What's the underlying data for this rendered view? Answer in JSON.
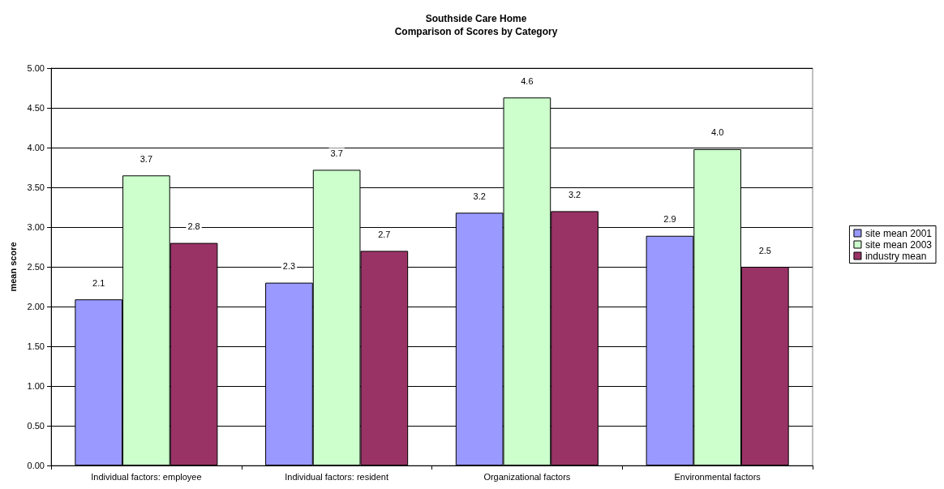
{
  "chart_data": {
    "type": "bar",
    "title": "Southside Care Home\nComparison of Scores by Category",
    "ylabel": "mean score",
    "categories": [
      "Individual factors: employee",
      "Individual factors: resident",
      "Organizational factors",
      "Environmental factors"
    ],
    "series": [
      {
        "name": "site mean 2001",
        "color": "#9999ff",
        "values": [
          2.09,
          2.3,
          3.18,
          2.89
        ],
        "value_labels": [
          "2.1",
          "2.3",
          "3.2",
          "2.9"
        ]
      },
      {
        "name": "site mean 2003",
        "color": "#ccffcc",
        "values": [
          3.65,
          3.72,
          4.63,
          3.98
        ],
        "value_labels": [
          "3.7",
          "3.7",
          "4.6",
          "4.0"
        ]
      },
      {
        "name": "industry mean",
        "color": "#993366",
        "values": [
          2.8,
          2.7,
          3.2,
          2.5
        ],
        "value_labels": [
          "2.8",
          "2.7",
          "3.2",
          "2.5"
        ]
      }
    ],
    "ylim": [
      0,
      5
    ],
    "yticks": [
      {
        "value": 0,
        "label": "0.00"
      },
      {
        "value": 0.5,
        "label": "0.50"
      },
      {
        "value": 1,
        "label": "1.00"
      },
      {
        "value": 1.5,
        "label": "1.50"
      },
      {
        "value": 2,
        "label": "2.00"
      },
      {
        "value": 2.5,
        "label": "2.50"
      },
      {
        "value": 3,
        "label": "3.00"
      },
      {
        "value": 3.5,
        "label": "3.50"
      },
      {
        "value": 4,
        "label": "4.00"
      },
      {
        "value": 4.5,
        "label": "4.50"
      },
      {
        "value": 5,
        "label": "5.00"
      }
    ],
    "grid": "y",
    "legend": "right"
  }
}
